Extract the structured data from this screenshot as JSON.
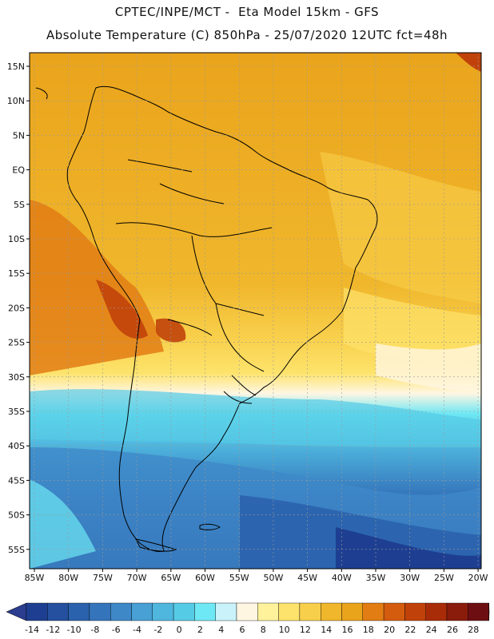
{
  "header": {
    "line1": "CPTEC/INPE/MCT -  Eta Model 15km - GFS",
    "line2": "Absolute Temperature (C) 850hPa - 25/07/2020 12UTC fct=48h"
  },
  "map": {
    "lat_labels": [
      "15N",
      "10N",
      "5N",
      "EQ",
      "5S",
      "10S",
      "15S",
      "20S",
      "25S",
      "30S",
      "35S",
      "40S",
      "45S",
      "50S",
      "55S"
    ],
    "lon_labels": [
      "85W",
      "80W",
      "75W",
      "70W",
      "65W",
      "60W",
      "55W",
      "50W",
      "45W",
      "40W",
      "35W",
      "30W",
      "25W",
      "20W"
    ]
  },
  "colorbar": {
    "labels": [
      "-14",
      "-12",
      "-10",
      "-8",
      "-6",
      "-4",
      "-2",
      "0",
      "2",
      "4",
      "6",
      "8",
      "10",
      "12",
      "14",
      "16",
      "18",
      "20",
      "22",
      "24",
      "26",
      "28"
    ],
    "colors": [
      "#1e3f91",
      "#25509f",
      "#2b62ad",
      "#3474bb",
      "#3e88c8",
      "#48a0d4",
      "#4fb6de",
      "#56cbe6",
      "#6ee8f4",
      "#c9f2fb",
      "#fff6e2",
      "#fff29b",
      "#fde36b",
      "#f8cf4b",
      "#f0b72c",
      "#eaa41c",
      "#e27d14",
      "#d45c0e",
      "#c0420a",
      "#a92c09",
      "#8a1c0c",
      "#6d0f12"
    ],
    "under_color": "#2a3d8f",
    "over_color": "#6d0f12"
  }
}
